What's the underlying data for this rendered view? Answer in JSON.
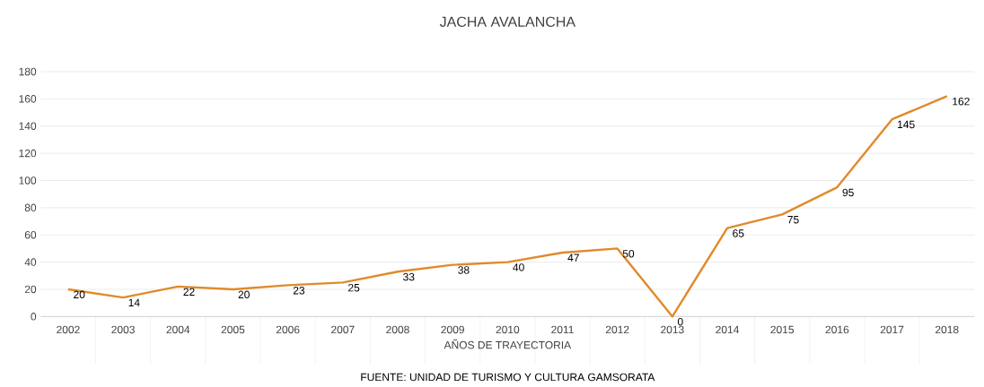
{
  "chart_data": {
    "type": "line",
    "title": "JACHA AVALANCHA",
    "xlabel": "AÑOS DE TRAYECTORIA",
    "categories": [
      "2002",
      "2003",
      "2004",
      "2005",
      "2006",
      "2007",
      "2008",
      "2009",
      "2010",
      "2011",
      "2012",
      "2013",
      "2014",
      "2015",
      "2016",
      "2017",
      "2018"
    ],
    "values": [
      20,
      14,
      22,
      20,
      23,
      25,
      33,
      38,
      40,
      47,
      50,
      0,
      65,
      75,
      95,
      145,
      162
    ],
    "color": "#e08a2a",
    "ylim": [
      0,
      180
    ],
    "yticks": [
      0,
      20,
      40,
      60,
      80,
      100,
      120,
      140,
      160,
      180
    ],
    "grid": "y",
    "data_labels": true,
    "marker": "none",
    "annotations": [
      "FUENTE: UNIDAD DE TURISMO Y CULTURA GAMSORATA"
    ]
  }
}
